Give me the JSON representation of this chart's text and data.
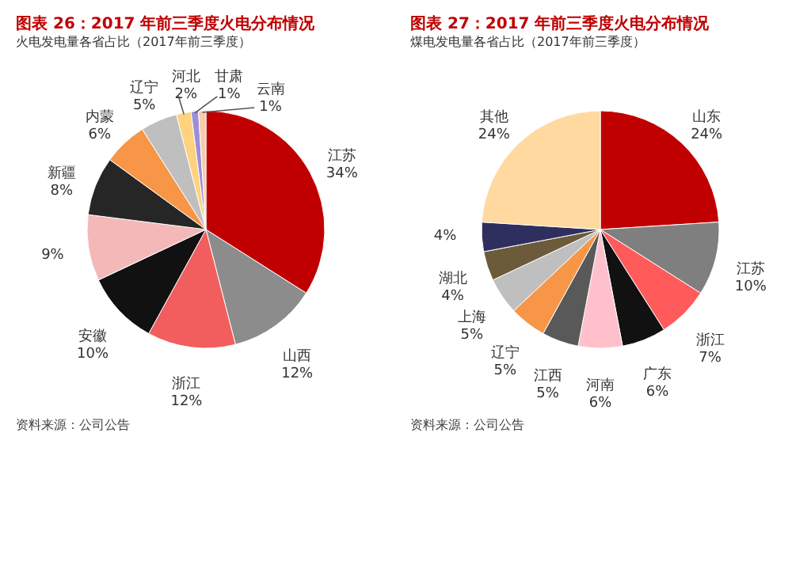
{
  "chart_data": [
    {
      "type": "pie",
      "title": "图表 26：2017 年前三季度火电分布情况",
      "subtitle": "火电发电量各省占比（2017年前三季度）",
      "categories": [
        "江苏",
        "山西",
        "浙江",
        "安徽",
        null,
        "新疆",
        "内蒙",
        "辽宁",
        "河北",
        "甘肃",
        "云南"
      ],
      "values": [
        34,
        12,
        12,
        10,
        9,
        8,
        6,
        5,
        2,
        1,
        1
      ],
      "value_labels": [
        "34%",
        "12%",
        "12%",
        "10%",
        "9%",
        "8%",
        "6%",
        "5%",
        "2%",
        "1%",
        "1%"
      ],
      "colors": [
        "#c00000",
        "#8c8c8c",
        "#f25d5d",
        "#111111",
        "#f4b8b8",
        "#262626",
        "#f79646",
        "#bfbfbf",
        "#ffd27f",
        "#9b8fd8",
        "#f8cbad"
      ],
      "annotations": [
        "资料来源：公司公告"
      ]
    },
    {
      "type": "pie",
      "title": "图表 27：2017 年前三季度火电分布情况",
      "subtitle": "煤电发电量各省占比（2017年前三季度）",
      "categories": [
        "山东",
        "江苏",
        "浙江",
        "广东",
        "河南",
        "江西",
        "辽宁",
        "上海",
        "湖北",
        null,
        "其他"
      ],
      "values": [
        24,
        10,
        7,
        6,
        6,
        5,
        5,
        5,
        4,
        4,
        24
      ],
      "value_labels": [
        "24%",
        "10%",
        "7%",
        "6%",
        "6%",
        "5%",
        "5%",
        "5%",
        "4%",
        "4%",
        "24%"
      ],
      "colors": [
        "#c00000",
        "#7f7f7f",
        "#ff5b5b",
        "#111111",
        "#ffc0cb",
        "#595959",
        "#f79646",
        "#bfbfbf",
        "#6b5b3a",
        "#2f2f5f",
        "#ffd9a0"
      ],
      "annotations": [
        "资料来源：公司公告"
      ]
    }
  ]
}
